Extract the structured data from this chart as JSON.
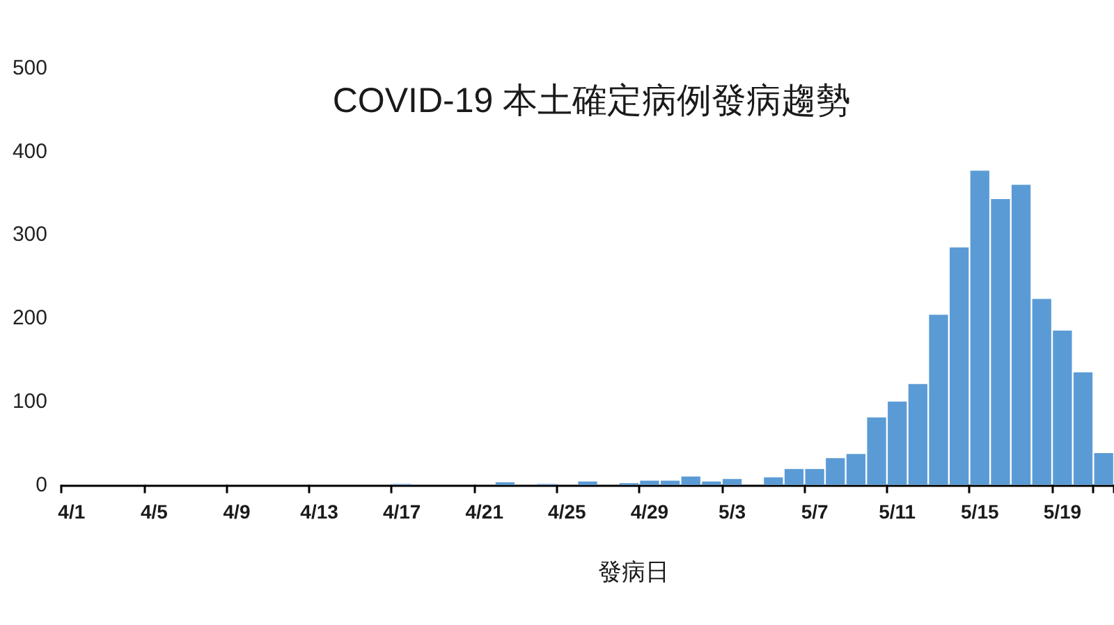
{
  "chart_data": {
    "type": "bar",
    "title": "COVID-19 本土確定病例發病趨勢",
    "xlabel": "發病日",
    "categories": [
      "4/1",
      null,
      null,
      null,
      "4/5",
      null,
      null,
      null,
      "4/9",
      null,
      null,
      null,
      "4/13",
      null,
      null,
      null,
      "4/17",
      null,
      null,
      null,
      "4/21",
      null,
      null,
      null,
      "4/25",
      null,
      null,
      null,
      "4/29",
      null,
      null,
      null,
      "5/3",
      null,
      null,
      null,
      "5/7",
      null,
      null,
      null,
      "5/11",
      null,
      null,
      null,
      "5/15",
      null,
      null,
      null,
      "5/19",
      null,
      null
    ],
    "values": [
      0,
      0,
      0,
      0,
      0,
      0,
      0,
      0,
      0,
      0,
      0,
      0,
      0,
      0,
      0,
      0,
      1,
      0,
      0,
      0,
      0,
      3,
      0,
      1,
      0,
      4,
      0,
      2,
      5,
      5,
      10,
      4,
      7,
      0,
      9,
      19,
      19,
      32,
      37,
      81,
      100,
      121,
      204,
      285,
      377,
      343,
      360,
      223,
      185,
      135,
      38
    ],
    "color": "#5b9bd5",
    "ylim": [
      0,
      500
    ],
    "yticks": [
      0,
      100,
      200,
      300,
      400,
      500
    ]
  }
}
